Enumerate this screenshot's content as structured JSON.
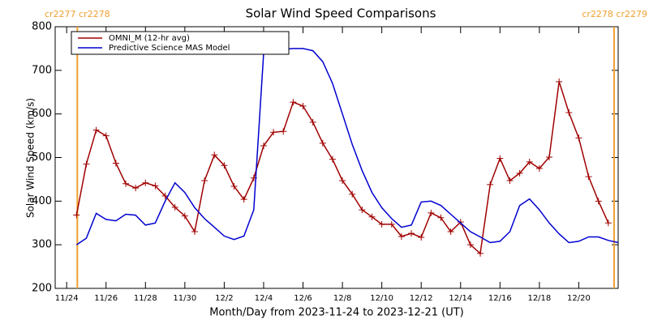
{
  "chart_data": {
    "type": "line",
    "title": "Solar Wind Speed Comparisons",
    "xlabel": "Month/Day from 2023-11-24 to 2023-12-21 (UT)",
    "ylabel": "Solar Wind Speed (km/s)",
    "xlim": [
      "2023-11-23T10:00",
      "2023-12-22T00:00"
    ],
    "ylim": [
      200,
      800
    ],
    "yticks": [
      200,
      300,
      400,
      500,
      600,
      700,
      800
    ],
    "xticks": [
      {
        "value": "2023-11-24T00:00",
        "label": "11/24"
      },
      {
        "value": "2023-11-26T00:00",
        "label": "11/26"
      },
      {
        "value": "2023-11-28T00:00",
        "label": "11/28"
      },
      {
        "value": "2023-11-30T00:00",
        "label": "11/30"
      },
      {
        "value": "2023-12-02T00:00",
        "label": "12/2"
      },
      {
        "value": "2023-12-04T00:00",
        "label": "12/4"
      },
      {
        "value": "2023-12-06T00:00",
        "label": "12/6"
      },
      {
        "value": "2023-12-08T00:00",
        "label": "12/8"
      },
      {
        "value": "2023-12-10T00:00",
        "label": "12/10"
      },
      {
        "value": "2023-12-12T00:00",
        "label": "12/12"
      },
      {
        "value": "2023-12-14T00:00",
        "label": "12/14"
      },
      {
        "value": "2023-12-16T00:00",
        "label": "12/16"
      },
      {
        "value": "2023-12-18T00:00",
        "label": "12/18"
      },
      {
        "value": "2023-12-20T00:00",
        "label": "12/20"
      }
    ],
    "legend": "upper left",
    "annotations": [
      {
        "text": "cr2277 cr2278",
        "x": "2023-11-24T13:00",
        "color": "#f0a030"
      },
      {
        "text": "cr2278 cr2279",
        "x": "2023-12-21T19:00",
        "color": "#f0a030"
      }
    ],
    "series": [
      {
        "name": "OMNI_M (12-hr avg)",
        "color": "#a00000",
        "marker": "+",
        "x": [
          "2023-11-24T12:00",
          "2023-11-25T00:00",
          "2023-11-25T12:00",
          "2023-11-26T00:00",
          "2023-11-26T12:00",
          "2023-11-27T00:00",
          "2023-11-27T12:00",
          "2023-11-28T00:00",
          "2023-11-28T12:00",
          "2023-11-29T00:00",
          "2023-11-29T12:00",
          "2023-11-30T00:00",
          "2023-11-30T12:00",
          "2023-12-01T00:00",
          "2023-12-01T12:00",
          "2023-12-02T00:00",
          "2023-12-02T12:00",
          "2023-12-03T00:00",
          "2023-12-03T12:00",
          "2023-12-04T00:00",
          "2023-12-04T12:00",
          "2023-12-05T00:00",
          "2023-12-05T12:00",
          "2023-12-06T00:00",
          "2023-12-06T12:00",
          "2023-12-07T00:00",
          "2023-12-07T12:00",
          "2023-12-08T00:00",
          "2023-12-08T12:00",
          "2023-12-09T00:00",
          "2023-12-09T12:00",
          "2023-12-10T00:00",
          "2023-12-10T12:00",
          "2023-12-11T00:00",
          "2023-12-11T12:00",
          "2023-12-12T00:00",
          "2023-12-12T12:00",
          "2023-12-13T00:00",
          "2023-12-13T12:00",
          "2023-12-14T00:00",
          "2023-12-14T12:00",
          "2023-12-15T00:00",
          "2023-12-15T12:00",
          "2023-12-16T00:00",
          "2023-12-16T12:00",
          "2023-12-17T00:00",
          "2023-12-17T12:00",
          "2023-12-18T00:00",
          "2023-12-18T12:00",
          "2023-12-19T00:00",
          "2023-12-19T12:00",
          "2023-12-20T00:00",
          "2023-12-20T12:00",
          "2023-12-21T00:00",
          "2023-12-21T12:00"
        ],
        "values": [
          368,
          485,
          563,
          550,
          487,
          440,
          430,
          442,
          435,
          412,
          386,
          366,
          330,
          447,
          506,
          482,
          434,
          404,
          453,
          527,
          558,
          560,
          627,
          618,
          581,
          533,
          496,
          447,
          416,
          380,
          364,
          347,
          347,
          319,
          326,
          317,
          373,
          362,
          330,
          352,
          300,
          280,
          438,
          498,
          447,
          464,
          490,
          475,
          501,
          674,
          603,
          545,
          456,
          400,
          350
        ]
      },
      {
        "name": "Predictive Science MAS Model",
        "color": "#0000d0",
        "x": [
          "2023-11-24T12:00",
          "2023-11-25T00:00",
          "2023-11-25T12:00",
          "2023-11-26T00:00",
          "2023-11-26T12:00",
          "2023-11-27T00:00",
          "2023-11-27T12:00",
          "2023-11-28T00:00",
          "2023-11-28T12:00",
          "2023-11-29T00:00",
          "2023-11-29T12:00",
          "2023-11-30T00:00",
          "2023-11-30T12:00",
          "2023-12-01T00:00",
          "2023-12-01T12:00",
          "2023-12-02T00:00",
          "2023-12-02T12:00",
          "2023-12-03T00:00",
          "2023-12-03T12:00",
          "2023-12-04T00:00",
          "2023-12-04T12:00",
          "2023-12-05T00:00",
          "2023-12-05T12:00",
          "2023-12-06T00:00",
          "2023-12-06T12:00",
          "2023-12-07T00:00",
          "2023-12-07T12:00",
          "2023-12-08T00:00",
          "2023-12-08T12:00",
          "2023-12-09T00:00",
          "2023-12-09T12:00",
          "2023-12-10T00:00",
          "2023-12-10T12:00",
          "2023-12-11T00:00",
          "2023-12-11T12:00",
          "2023-12-12T00:00",
          "2023-12-12T12:00",
          "2023-12-13T00:00",
          "2023-12-13T12:00",
          "2023-12-14T00:00",
          "2023-12-14T12:00",
          "2023-12-15T00:00",
          "2023-12-15T12:00",
          "2023-12-16T00:00",
          "2023-12-16T12:00",
          "2023-12-17T00:00",
          "2023-12-17T12:00",
          "2023-12-18T00:00",
          "2023-12-18T12:00",
          "2023-12-19T00:00",
          "2023-12-19T12:00",
          "2023-12-20T00:00",
          "2023-12-20T12:00",
          "2023-12-21T00:00",
          "2023-12-21T12:00",
          "2023-12-22T00:00"
        ],
        "values": [
          300,
          315,
          372,
          358,
          355,
          370,
          368,
          345,
          350,
          400,
          442,
          420,
          385,
          360,
          340,
          320,
          312,
          320,
          380,
          740,
          743,
          748,
          750,
          750,
          745,
          720,
          670,
          600,
          530,
          470,
          420,
          385,
          360,
          340,
          345,
          398,
          400,
          390,
          370,
          350,
          330,
          318,
          305,
          308,
          330,
          390,
          405,
          380,
          350,
          325,
          305,
          308,
          318,
          318,
          310,
          305
        ]
      }
    ]
  }
}
